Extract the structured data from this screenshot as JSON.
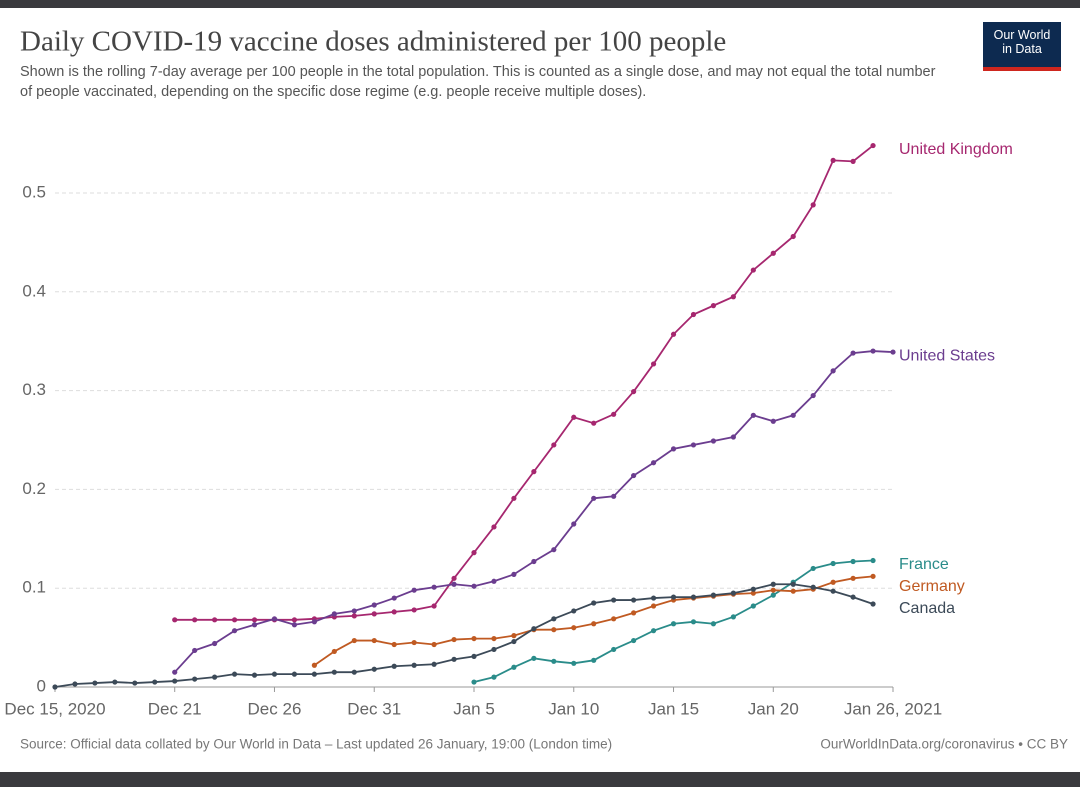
{
  "chart_data": {
    "type": "line",
    "title": "Daily COVID-19 vaccine doses administered per 100 people",
    "subtitle": "Shown is the rolling 7-day average per 100 people in the total population. This is counted as a single dose, and may not equal the total number of people vaccinated, depending on the specific dose regime (e.g. people receive multiple doses).",
    "logo": "Our World in Data",
    "source": "Source: Official data collated by Our World in Data – Last updated 26 January, 19:00 (London time)",
    "license": "OurWorldInData.org/coronavirus • CC BY",
    "x": [
      "2020-12-15",
      "2020-12-16",
      "2020-12-17",
      "2020-12-18",
      "2020-12-19",
      "2020-12-20",
      "2020-12-21",
      "2020-12-22",
      "2020-12-23",
      "2020-12-24",
      "2020-12-25",
      "2020-12-26",
      "2020-12-27",
      "2020-12-28",
      "2020-12-29",
      "2020-12-30",
      "2020-12-31",
      "2021-01-01",
      "2021-01-02",
      "2021-01-03",
      "2021-01-04",
      "2021-01-05",
      "2021-01-06",
      "2021-01-07",
      "2021-01-08",
      "2021-01-09",
      "2021-01-10",
      "2021-01-11",
      "2021-01-12",
      "2021-01-13",
      "2021-01-14",
      "2021-01-15",
      "2021-01-16",
      "2021-01-17",
      "2021-01-18",
      "2021-01-19",
      "2021-01-20",
      "2021-01-21",
      "2021-01-22",
      "2021-01-23",
      "2021-01-24",
      "2021-01-25",
      "2021-01-26"
    ],
    "xlim": [
      "2020-12-15",
      "2021-01-26"
    ],
    "xticks": [
      {
        "value": "2020-12-15",
        "label": "Dec 15, 2020"
      },
      {
        "value": "2020-12-21",
        "label": "Dec 21"
      },
      {
        "value": "2020-12-26",
        "label": "Dec 26"
      },
      {
        "value": "2020-12-31",
        "label": "Dec 31"
      },
      {
        "value": "2021-01-05",
        "label": "Jan 5"
      },
      {
        "value": "2021-01-10",
        "label": "Jan 10"
      },
      {
        "value": "2021-01-15",
        "label": "Jan 15"
      },
      {
        "value": "2021-01-20",
        "label": "Jan 20"
      },
      {
        "value": "2021-01-26",
        "label": "Jan 26, 2021"
      }
    ],
    "ylim": [
      0,
      0.55
    ],
    "yticks": [
      0,
      0.1,
      0.2,
      0.3,
      0.4,
      0.5
    ],
    "grid": true,
    "series": [
      {
        "name": "United Kingdom",
        "color": "#a6276f",
        "values": [
          null,
          null,
          null,
          null,
          null,
          null,
          0.068,
          0.068,
          0.068,
          0.068,
          0.068,
          0.068,
          0.068,
          0.069,
          0.071,
          0.072,
          0.074,
          0.076,
          0.078,
          0.082,
          0.11,
          0.136,
          0.162,
          0.191,
          0.218,
          0.245,
          0.273,
          0.267,
          0.276,
          0.299,
          0.327,
          0.357,
          0.377,
          0.386,
          0.395,
          0.422,
          0.439,
          0.456,
          0.488,
          0.533,
          0.532,
          0.548,
          null
        ]
      },
      {
        "name": "United States",
        "color": "#6b3d8f",
        "values": [
          null,
          null,
          null,
          null,
          null,
          null,
          0.015,
          0.037,
          0.044,
          0.057,
          0.063,
          0.069,
          0.063,
          0.066,
          0.074,
          0.077,
          0.083,
          0.09,
          0.098,
          0.101,
          0.104,
          0.102,
          0.107,
          0.114,
          0.127,
          0.139,
          0.165,
          0.191,
          0.193,
          0.214,
          0.227,
          0.241,
          0.245,
          0.249,
          0.253,
          0.275,
          0.269,
          0.275,
          0.295,
          0.32,
          0.338,
          0.34,
          0.339
        ]
      },
      {
        "name": "France",
        "color": "#2a8c8a",
        "values": [
          null,
          null,
          null,
          null,
          null,
          null,
          null,
          null,
          null,
          null,
          null,
          null,
          null,
          null,
          null,
          null,
          null,
          null,
          null,
          null,
          null,
          0.005,
          0.01,
          0.02,
          0.029,
          0.026,
          0.024,
          0.027,
          0.038,
          0.047,
          0.057,
          0.064,
          0.066,
          0.064,
          0.071,
          0.082,
          0.093,
          0.106,
          0.12,
          0.125,
          0.127,
          0.128,
          null
        ]
      },
      {
        "name": "Germany",
        "color": "#c05a22",
        "values": [
          null,
          null,
          null,
          null,
          null,
          null,
          null,
          null,
          null,
          null,
          null,
          null,
          null,
          0.022,
          0.036,
          0.047,
          0.047,
          0.043,
          0.045,
          0.043,
          0.048,
          0.049,
          0.049,
          0.052,
          0.058,
          0.058,
          0.06,
          0.064,
          0.069,
          0.075,
          0.082,
          0.088,
          0.09,
          0.092,
          0.094,
          0.095,
          0.098,
          0.097,
          0.099,
          0.106,
          0.11,
          0.112,
          null
        ]
      },
      {
        "name": "Canada",
        "color": "#3c4a58",
        "values": [
          0.0,
          0.003,
          0.004,
          0.005,
          0.004,
          0.005,
          0.006,
          0.008,
          0.01,
          0.013,
          0.012,
          0.013,
          0.013,
          0.013,
          0.015,
          0.015,
          0.018,
          0.021,
          0.022,
          0.023,
          0.028,
          0.031,
          0.038,
          0.046,
          0.059,
          0.069,
          0.077,
          0.085,
          0.088,
          0.088,
          0.09,
          0.091,
          0.091,
          0.093,
          0.095,
          0.099,
          0.104,
          0.104,
          0.101,
          0.097,
          0.091,
          0.084,
          null
        ]
      }
    ]
  }
}
